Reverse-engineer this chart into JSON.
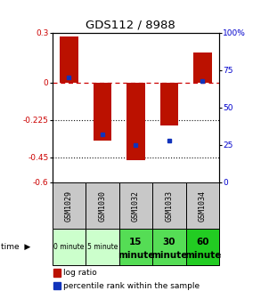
{
  "title": "GDS112 / 8988",
  "samples": [
    "GSM1029",
    "GSM1030",
    "GSM1032",
    "GSM1033",
    "GSM1034"
  ],
  "time_labels_top": [
    "0 minute",
    "5 minute",
    "15",
    "30",
    "60"
  ],
  "time_labels_bot": [
    "",
    "",
    "minute",
    "minute",
    "minute"
  ],
  "time_colors": [
    "#ccffcc",
    "#ccffcc",
    "#55dd55",
    "#55dd55",
    "#22cc22"
  ],
  "log_ratios": [
    0.28,
    -0.35,
    -0.47,
    -0.26,
    0.18
  ],
  "percentile_ranks": [
    70,
    32,
    25,
    28,
    68
  ],
  "ylim_left": [
    -0.6,
    0.3
  ],
  "ylim_right": [
    0,
    100
  ],
  "yticks_left": [
    0.3,
    0.0,
    -0.225,
    -0.45,
    -0.6
  ],
  "ytick_labels_left": [
    "0.3",
    "0",
    "-0.225",
    "-0.45",
    "-0.6"
  ],
  "yticks_right": [
    100,
    75,
    50,
    25,
    0
  ],
  "bar_color": "#bb1100",
  "dot_color": "#1133bb",
  "zeroline_color": "#cc0000",
  "grid_color": "#111111",
  "bg_color": "#ffffff",
  "plot_bg": "#ffffff",
  "sample_row_color": "#c8c8c8",
  "legend_bar_label": "log ratio",
  "legend_dot_label": "percentile rank within the sample"
}
